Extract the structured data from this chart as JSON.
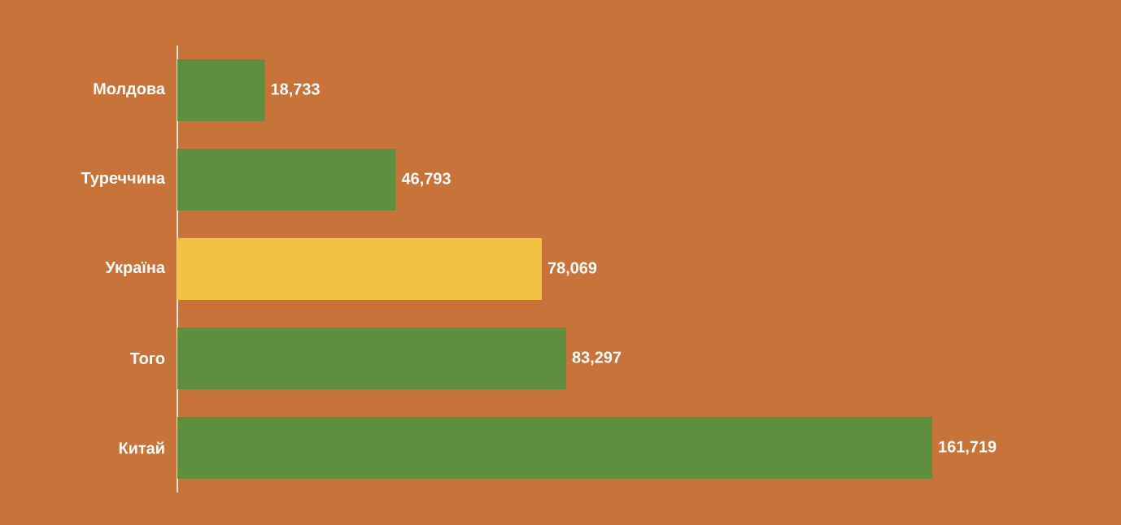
{
  "chart_data": {
    "type": "bar",
    "orientation": "horizontal",
    "categories": [
      "Молдова",
      "Туреччина",
      "Україна",
      "Того",
      "Китай"
    ],
    "values": [
      18733,
      46793,
      78069,
      83297,
      161719
    ],
    "value_labels": [
      "18,733",
      "46,793",
      "78,069",
      "83,297",
      "161,719"
    ],
    "colors": [
      "#5e8f3e",
      "#5e8f3e",
      "#f3c243",
      "#5e8f3e",
      "#5e8f3e"
    ]
  }
}
